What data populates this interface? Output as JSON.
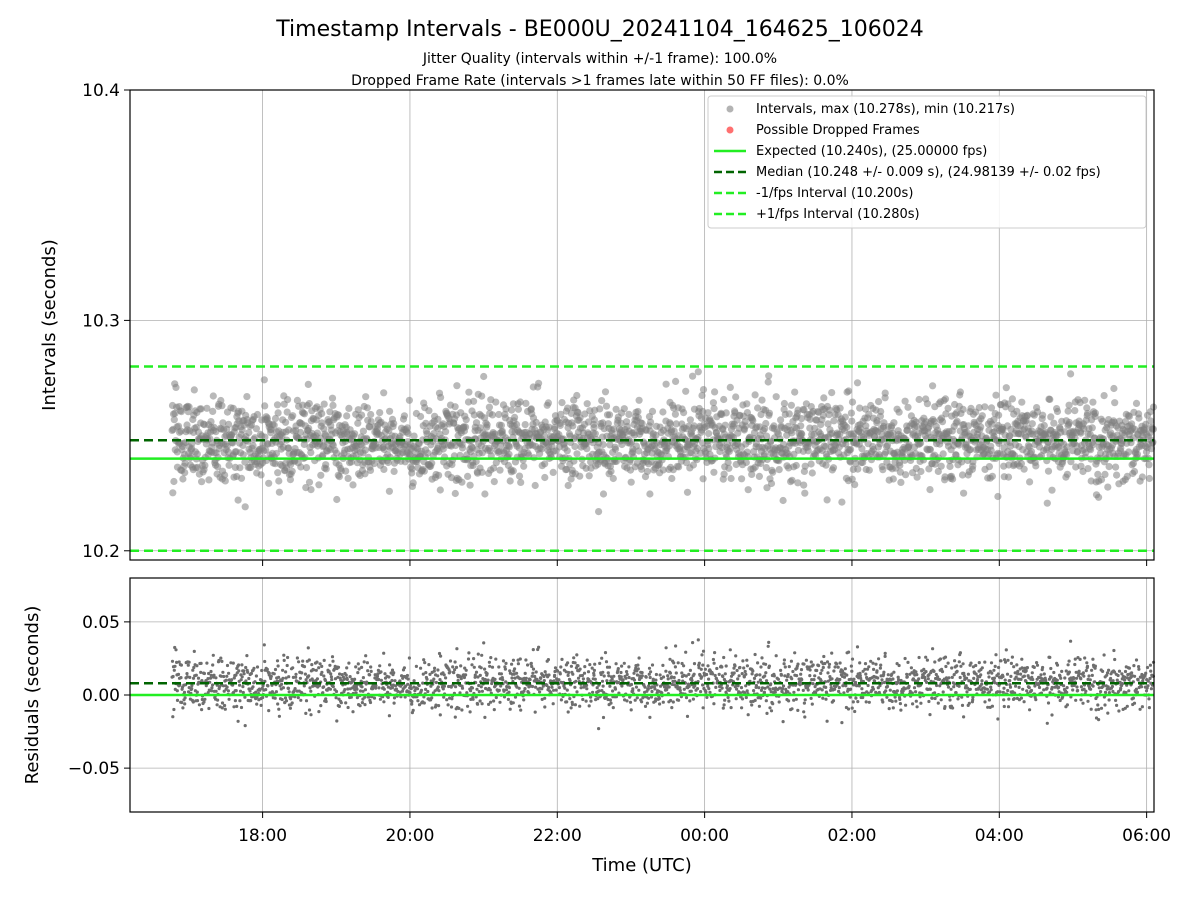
{
  "title": "Timestamp Intervals - BE000U_20241104_164625_106024",
  "subtitle_1": "Jitter Quality (intervals within +/-1 frame): 100.0%",
  "subtitle_2": "Dropped Frame Rate (intervals >1 frames late within 50 FF files): 0.0%",
  "colors": {
    "points": "#808080",
    "dropped": "#ff6060",
    "expected": "#22ee22",
    "median": "#006400",
    "bounds": "#22ee22"
  },
  "chart_data": [
    {
      "type": "scatter",
      "name": "intervals-panel",
      "ylabel": "Intervals (seconds)",
      "xlabel": "",
      "ylim": [
        10.196,
        10.4
      ],
      "yticks": [
        "10.2",
        "10.3",
        "10.4"
      ],
      "ytick_values": [
        10.2,
        10.3,
        10.4
      ],
      "x_range_hours": [
        16.2,
        30.1
      ],
      "data_start_hour": 16.77,
      "data_end_hour": 30.1,
      "grid": true,
      "legend_placement": "top-right",
      "legend": [
        "Intervals, max (10.278s), min (10.217s)",
        "Possible Dropped Frames",
        "Expected (10.240s), (25.00000 fps)",
        "Median (10.248 +/- 0.009 s), (24.98139 +/- 0.02 fps)",
        "-1/fps Interval (10.200s)",
        "+1/fps Interval (10.280s)"
      ],
      "max_interval": 10.278,
      "min_interval": 10.217,
      "expected": 10.24,
      "median": 10.248,
      "std": 0.009,
      "lower_bound": 10.2,
      "upper_bound": 10.28,
      "dropped_frames": []
    },
    {
      "type": "scatter",
      "name": "residuals-panel",
      "ylabel": "Residuals (seconds)",
      "xlabel": "Time (UTC)",
      "ylim": [
        -0.08,
        0.08
      ],
      "yticks": [
        "0.05",
        "0.00",
        "−0.05"
      ],
      "ytick_values": [
        0.05,
        0.0,
        -0.05
      ],
      "xticks": [
        "18:00",
        "20:00",
        "22:00",
        "00:00",
        "02:00",
        "04:00",
        "06:00"
      ],
      "xtick_hours": [
        18,
        20,
        22,
        24,
        26,
        28,
        30
      ],
      "grid": true,
      "expected_residual": 0.0,
      "median_residual": 0.008
    }
  ]
}
